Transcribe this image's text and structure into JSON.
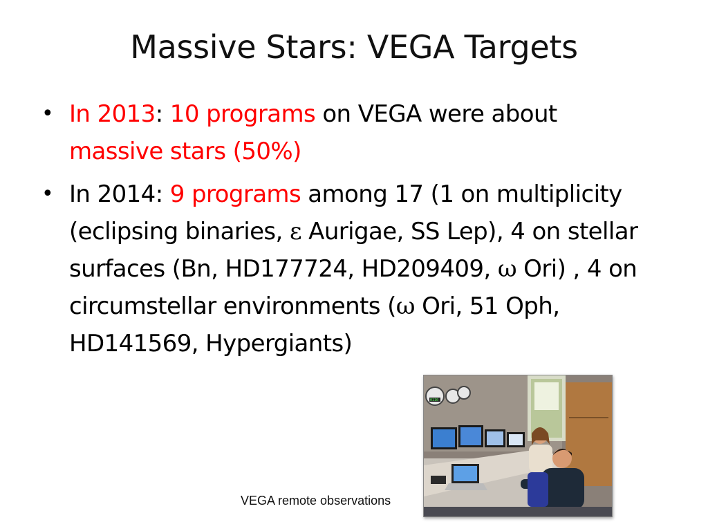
{
  "slide": {
    "title": "Massive Stars: VEGA Targets"
  },
  "bullets": [
    {
      "marker": "•",
      "parts": [
        {
          "text": "In 2013",
          "color": "#ff0000"
        },
        {
          "text": ": ",
          "color": "#000000"
        },
        {
          "text": "10 programs",
          "color": "#ff0000"
        },
        {
          "text": " on VEGA were about ",
          "color": "#000000"
        },
        {
          "text": "massive stars (50%)",
          "color": "#ff0000"
        }
      ]
    },
    {
      "marker": "•",
      "parts": [
        {
          "text": "In 2014: ",
          "color": "#000000"
        },
        {
          "text": "9 programs",
          "color": "#ff0000"
        },
        {
          "text": " among 17 (1 on multiplicity (eclipsing binaries, ",
          "color": "#000000"
        },
        {
          "text": "ε",
          "color": "#000000",
          "greek": true
        },
        {
          "text": " Aurigae, SS Lep), 4 on stellar surfaces (Bn, HD177724, HD209409, ",
          "color": "#000000"
        },
        {
          "text": "ω",
          "color": "#000000",
          "greek": true
        },
        {
          "text": " Ori) , 4 on circumstellar environments (",
          "color": "#000000"
        },
        {
          "text": "ω",
          "color": "#000000",
          "greek": true
        },
        {
          "text": " Ori, 51 Oph, HD141569, Hypergiants)",
          "color": "#000000"
        }
      ]
    }
  ],
  "photo": {
    "caption": "VEGA remote observations",
    "screen_label": "0110"
  }
}
